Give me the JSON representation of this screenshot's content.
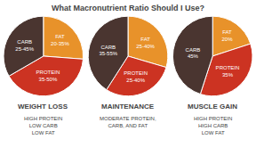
{
  "title": "What Macronutrient Ratio Should I Use?",
  "chart_data": [
    {
      "type": "pie",
      "title": "WEIGHT LOSS",
      "subtitle": "HIGH PROTEIN\nLOW CARB\nLOW FAT",
      "categories": [
        "FAT\n20-35%",
        "PROTEIN\n35-50%",
        "CARB\n25-45%"
      ],
      "values": [
        27.5,
        42.5,
        35.0
      ],
      "colors": [
        "#E8922A",
        "#CC3322",
        "#4A3530"
      ]
    },
    {
      "type": "pie",
      "title": "MAINTENANCE",
      "subtitle": "MODERATE PROTEIN,\nCARB, AND FAT",
      "categories": [
        "FAT\n25-40%",
        "PROTEIN\n25-40%",
        "CARB\n35-55%"
      ],
      "values": [
        32.5,
        32.5,
        45.0
      ],
      "colors": [
        "#E8922A",
        "#CC3322",
        "#4A3530"
      ]
    },
    {
      "type": "pie",
      "title": "MUSCLE GAIN",
      "subtitle": "HIGH PROTEIN\nHIGH CARB\nLOW FAT",
      "categories": [
        "FAT\n20%",
        "PROTEIN\n35%",
        "CARB\n45%"
      ],
      "values": [
        20.0,
        35.0,
        45.0
      ],
      "colors": [
        "#E8922A",
        "#CC3322",
        "#4A3530"
      ]
    }
  ]
}
